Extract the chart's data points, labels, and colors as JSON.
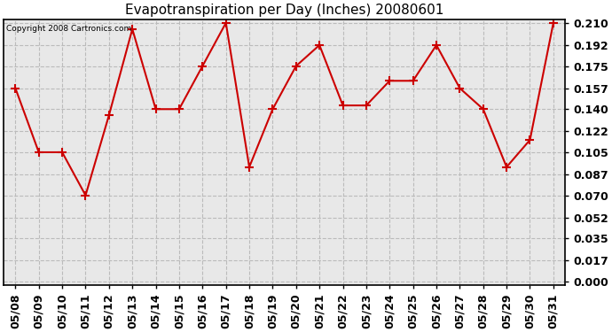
{
  "title": "Evapotranspiration per Day (Inches) 20080601",
  "copyright": "Copyright 2008 Cartronics.com",
  "x_labels": [
    "05/08",
    "05/09",
    "05/10",
    "05/11",
    "05/12",
    "05/13",
    "05/14",
    "05/15",
    "05/16",
    "05/17",
    "05/18",
    "05/19",
    "05/20",
    "05/21",
    "05/22",
    "05/23",
    "05/24",
    "05/25",
    "05/26",
    "05/27",
    "05/28",
    "05/29",
    "05/30",
    "05/31"
  ],
  "y_values": [
    0.157,
    0.105,
    0.105,
    0.07,
    0.135,
    0.205,
    0.14,
    0.14,
    0.175,
    0.21,
    0.093,
    0.14,
    0.175,
    0.192,
    0.143,
    0.143,
    0.163,
    0.163,
    0.192,
    0.157,
    0.14,
    0.093,
    0.115,
    0.21
  ],
  "y_ticks": [
    0.0,
    0.017,
    0.035,
    0.052,
    0.07,
    0.087,
    0.105,
    0.122,
    0.14,
    0.157,
    0.175,
    0.192,
    0.21
  ],
  "line_color": "#cc0000",
  "marker": "+",
  "background_color": "#ffffff",
  "plot_bg_color": "#e8e8e8",
  "grid_color": "#bbbbbb",
  "title_fontsize": 11,
  "copyright_fontsize": 6.5,
  "tick_fontsize": 9,
  "fig_width": 6.9,
  "fig_height": 3.75,
  "dpi": 100
}
